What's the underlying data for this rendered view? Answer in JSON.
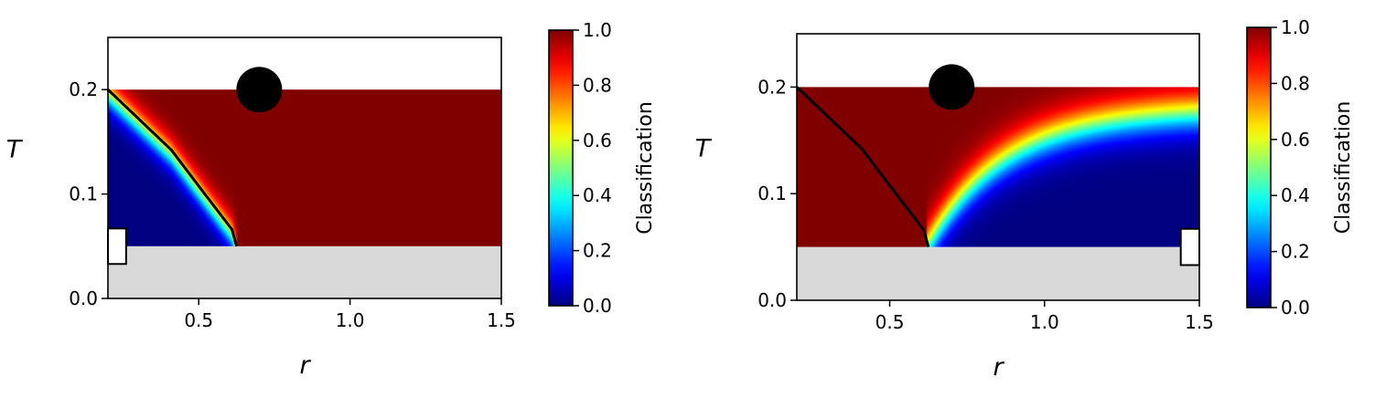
{
  "chart_data": [
    {
      "type": "heatmap",
      "title": "",
      "xlabel": "r",
      "ylabel": "T",
      "xlim": [
        0.2,
        1.5
      ],
      "ylim": [
        0.0,
        0.25
      ],
      "x_ticks": [
        0.5,
        1.0,
        1.5
      ],
      "x_tick_labels": [
        "0.5",
        "1.0",
        "1.5"
      ],
      "y_ticks": [
        0.0,
        0.1,
        0.2
      ],
      "y_tick_labels": [
        "0.0",
        "0.1",
        "0.2"
      ],
      "data_region": {
        "r": [
          0.2,
          1.5
        ],
        "T": [
          0.05,
          0.2
        ]
      },
      "excluded_region": {
        "r": [
          0.2,
          1.5
        ],
        "T": [
          0.0,
          0.05
        ],
        "color": "#d9d9d9"
      },
      "heatmap_rule": "low classification (blue) inside the boundary curve, high (dark red) outside",
      "boundary_line": {
        "r": [
          0.2,
          0.41,
          0.52,
          0.61,
          0.625
        ],
        "T": [
          0.2,
          0.142,
          0.1,
          0.066,
          0.05
        ]
      },
      "marker_circle": {
        "r": 0.7,
        "T": 0.2
      },
      "marker_rect": {
        "r": [
          0.2,
          0.26
        ],
        "T": [
          0.033,
          0.067
        ]
      },
      "colorbar": {
        "label": "Classification",
        "min": 0.0,
        "max": 1.0,
        "ticks": [
          "0.0",
          "0.2",
          "0.4",
          "0.6",
          "0.8",
          "1.0"
        ],
        "colormap": "jet"
      }
    },
    {
      "type": "heatmap",
      "title": "",
      "xlabel": "r",
      "ylabel": "T",
      "xlim": [
        0.2,
        1.5
      ],
      "ylim": [
        0.0,
        0.25
      ],
      "x_ticks": [
        0.5,
        1.0,
        1.5
      ],
      "x_tick_labels": [
        "0.5",
        "1.0",
        "1.5"
      ],
      "y_ticks": [
        0.0,
        0.1,
        0.2
      ],
      "y_tick_labels": [
        "0.0",
        "0.1",
        "0.2"
      ],
      "data_region": {
        "r": [
          0.2,
          1.5
        ],
        "T": [
          0.05,
          0.2
        ]
      },
      "excluded_region": {
        "r": [
          0.2,
          1.5
        ],
        "T": [
          0.0,
          0.05
        ],
        "color": "#d9d9d9"
      },
      "heatmap_rule": "high classification (dark red) near left/top, low (blue) at large r and low T",
      "boundary_line": {
        "r": [
          0.2,
          0.41,
          0.52,
          0.61,
          0.625
        ],
        "T": [
          0.2,
          0.142,
          0.1,
          0.066,
          0.05
        ]
      },
      "marker_circle": {
        "r": 0.7,
        "T": 0.2
      },
      "marker_rect": {
        "r": [
          1.44,
          1.5
        ],
        "T": [
          0.033,
          0.067
        ]
      },
      "colorbar": {
        "label": "Classification",
        "min": 0.0,
        "max": 1.0,
        "ticks": [
          "0.0",
          "0.2",
          "0.4",
          "0.6",
          "0.8",
          "1.0"
        ],
        "colormap": "jet"
      }
    }
  ]
}
